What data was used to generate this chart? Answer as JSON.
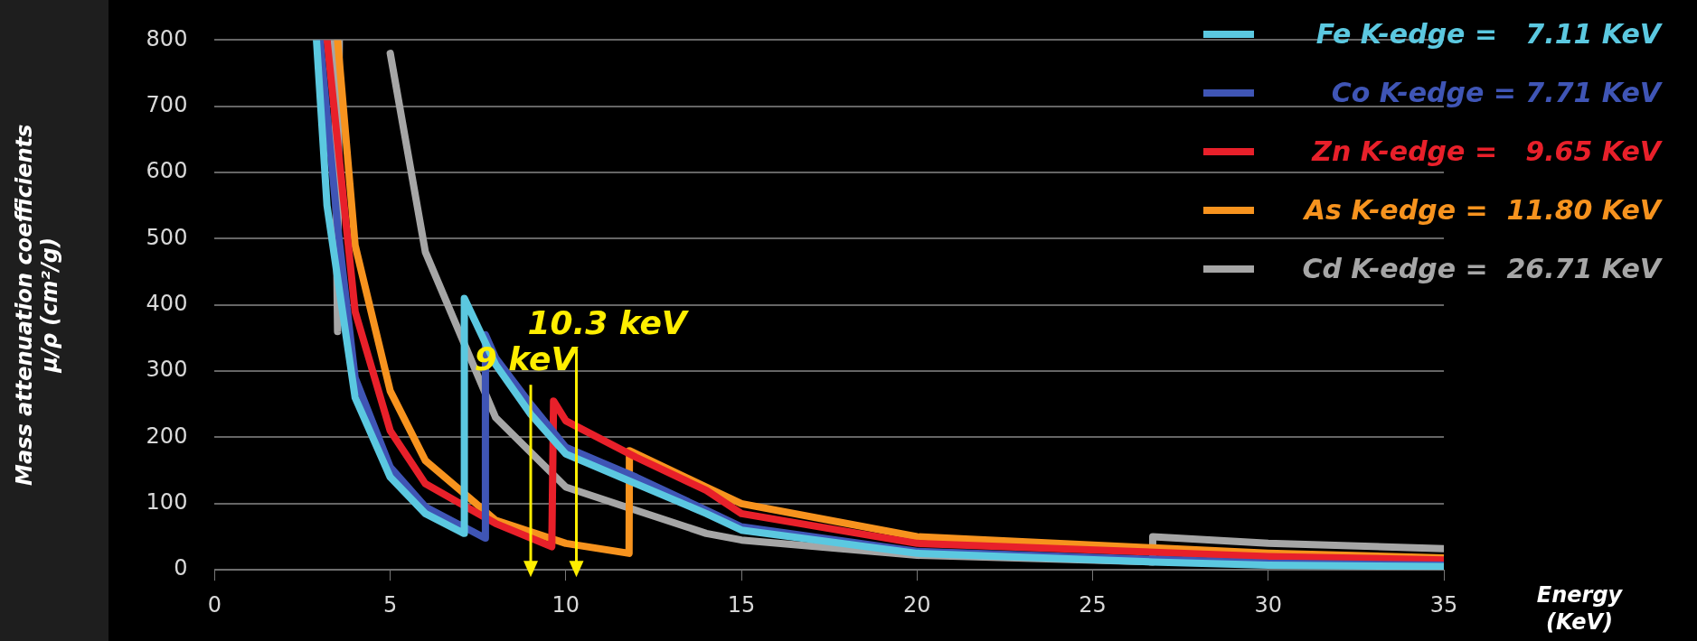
{
  "chart_data": {
    "type": "line",
    "xlabel": "Energy\n(KeV)",
    "ylabel": "Mass attenuation coefficients\nμ/ρ (cm²/g)",
    "xlim": [
      0,
      35
    ],
    "ylim": [
      0,
      800
    ],
    "xticks": [
      0,
      5,
      10,
      15,
      20,
      25,
      30,
      35
    ],
    "yticks": [
      0,
      100,
      200,
      300,
      400,
      500,
      600,
      700,
      800
    ],
    "grid": "y",
    "legend": "top right",
    "marker": "none",
    "line_style": "solid",
    "series": [
      {
        "name": "Fe K-edge =   7.11 KeV",
        "color": "#5bc8e0",
        "x": [
          2.9,
          3.2,
          4,
          5,
          6,
          7.1,
          7.11,
          8,
          9,
          10,
          12,
          14,
          15,
          20,
          26.7,
          30,
          35
        ],
        "values": [
          800,
          550,
          260,
          140,
          85,
          55,
          410,
          310,
          235,
          175,
          130,
          85,
          60,
          25,
          12,
          7,
          5
        ]
      },
      {
        "name": "Co K-edge = 7.71 KeV",
        "color": "#3f55b5",
        "x": [
          3,
          3.5,
          4,
          5,
          6,
          7.7,
          7.71,
          8,
          9,
          10,
          12,
          14,
          15,
          20,
          30,
          35
        ],
        "values": [
          800,
          520,
          290,
          155,
          95,
          48,
          355,
          320,
          250,
          185,
          140,
          90,
          65,
          28,
          10,
          7
        ]
      },
      {
        "name": "Zn K-edge =   9.65 KeV",
        "color": "#e8202a",
        "x": [
          3.2,
          4,
          5,
          6,
          8,
          9.6,
          9.65,
          10,
          12,
          14,
          15,
          20,
          30,
          35
        ],
        "values": [
          800,
          390,
          210,
          130,
          70,
          35,
          255,
          225,
          170,
          120,
          85,
          40,
          20,
          15
        ]
      },
      {
        "name": "As K-edge =  11.80 KeV",
        "color": "#f7931e",
        "x": [
          3.5,
          4,
          5,
          6,
          8,
          10,
          11.8,
          11.81,
          14,
          15,
          20,
          30,
          35
        ],
        "values": [
          800,
          490,
          270,
          165,
          75,
          40,
          25,
          180,
          125,
          100,
          50,
          25,
          18
        ]
      },
      {
        "name": "Cd K-edge =  26.71 KeV",
        "color": "#a6a6a6",
        "x": [
          3.4,
          3.5,
          3.55,
          null,
          5,
          6,
          8,
          10,
          12,
          14,
          15,
          20,
          26.7,
          26.71,
          30,
          35
        ],
        "values": [
          800,
          360,
          800,
          null,
          780,
          480,
          230,
          125,
          90,
          55,
          45,
          22,
          12,
          50,
          40,
          32
        ]
      }
    ],
    "annotations": [
      {
        "text": "9 keV",
        "x": 9,
        "y": 0
      },
      {
        "text": "10.3 keV",
        "x": 10.3,
        "y": 0
      }
    ]
  }
}
